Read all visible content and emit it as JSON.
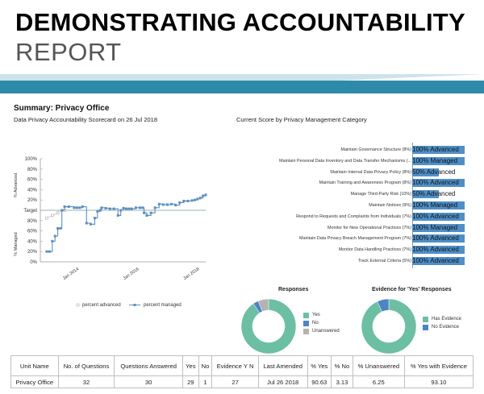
{
  "report": {
    "title_line1": "DEMONSTRATING ACCOUNTABILITY",
    "title_line2": "REPORT",
    "summary_heading": "Summary:  Privacy Office",
    "scorecard_subtitle": "Data Privacy Accountability Scorecard on 26 Jul 2018",
    "category_title": "Current Score by Privacy Management Category"
  },
  "colors": {
    "banner_light": "#cde3ec",
    "banner_dark": "#2e8aa9",
    "bar_blue": "#4f8fc8",
    "donut_green": "#6cbfa3",
    "donut_blue": "#4d84c4",
    "donut_gray": "#b3b3b3",
    "line_managed": "#5b8fc2",
    "line_target": "#7a9a9a"
  },
  "chart_data": [
    {
      "type": "line",
      "y_tick_labels_advanced": [
        "100%",
        "80%",
        "60%",
        "40%",
        "20%"
      ],
      "target_label": "Target",
      "y_tick_labels_managed": [
        "80%",
        "60%",
        "40%",
        "20%",
        "0%"
      ],
      "ylabel_advanced": "% Advanced",
      "ylabel_managed": "% Managed",
      "x_tick_labels": [
        "Jan 2014",
        "Jan 2016",
        "Jan 2018"
      ],
      "ylim": [
        -100,
        100
      ],
      "series": [
        {
          "name": "percent advanced",
          "x": [
            0.0,
            0.4,
            0.8,
            1.3
          ],
          "values": [
            -15,
            -10,
            -5,
            0
          ]
        },
        {
          "name": "percent managed",
          "x": [
            0.0,
            0.2,
            0.4,
            0.6,
            0.8,
            1.0,
            1.1,
            1.3,
            1.6,
            2.0,
            2.2,
            2.4,
            2.6,
            2.9,
            3.2,
            3.5,
            3.7,
            3.9,
            4.0,
            4.3,
            4.6,
            4.9,
            5.2,
            5.4,
            5.6,
            5.8,
            6.0,
            6.2,
            6.5,
            6.8,
            7.0,
            7.1,
            7.3,
            7.6,
            7.9,
            8.2,
            8.5,
            8.8,
            9.1,
            9.4,
            9.7,
            10.0,
            10.3,
            10.6,
            10.8,
            11.0,
            11.2,
            11.4,
            11.6
          ],
          "values": [
            -80,
            -80,
            -60,
            -50,
            -35,
            -35,
            0,
            7,
            7,
            5,
            5,
            5,
            7,
            -25,
            -27,
            -15,
            -2,
            0,
            5,
            4,
            3,
            3,
            -10,
            0,
            4,
            3,
            3,
            3,
            5,
            5,
            5,
            -5,
            -10,
            -5,
            5,
            12,
            11,
            11,
            12,
            10,
            15,
            18,
            18,
            19,
            20,
            22,
            24,
            28,
            30
          ]
        }
      ],
      "legend": [
        "percent advanced",
        "percent managed"
      ]
    },
    {
      "type": "bar",
      "title": "Current Score by Privacy Management Category",
      "categories": [
        "Maintain Governance Structure (8%)",
        "Maintain Personal Data Inventory and Data Transfer Mechanisms (...",
        "Maintain Internal Data Privacy Policy (8%)",
        "Maintain Training and Awareness Program (8%)",
        "Manage Third-Party Risk (10%)",
        "Maintain Notices (9%)",
        "Respond to Requests and Complaints from Individuals (7%)",
        "Monitor for New Operational Practices (7%)",
        "Maintain Data Privacy Breach Management Program (7%)",
        "Monitor Data Handling Practices (7%)",
        "Track External Criteria (5%)"
      ],
      "values": [
        100,
        100,
        50,
        100,
        50,
        100,
        100,
        100,
        100,
        100,
        100
      ],
      "value_labels": [
        "100% Advanced",
        "100% Managed",
        "50% Advanced",
        "100% Advanced",
        "50% Advanced",
        "100% Managed",
        "100% Advanced",
        "100% Managed",
        "100% Advanced",
        "100% Advanced",
        "100% Advanced"
      ],
      "ylim": [
        0,
        100
      ]
    },
    {
      "type": "pie",
      "title": "Responses",
      "labels": [
        "Yes",
        "No",
        "Unanswered"
      ],
      "values": [
        90.63,
        3.13,
        6.25
      ]
    },
    {
      "type": "pie",
      "title": "Evidence for 'Yes' Responses",
      "labels": [
        "Has Evidence",
        "No Evidence"
      ],
      "values": [
        93.1,
        6.9
      ]
    }
  ],
  "table": {
    "headers": [
      "Unit Name",
      "No. of Questions",
      "Questions Answered",
      "Yes",
      "No",
      "Evidence Y N",
      "Last Amended",
      "% Yes",
      "% No",
      "% Unanswered",
      "% Yes with Evidence"
    ],
    "rows": [
      [
        "Privacy Office",
        "32",
        "30",
        "29",
        "1",
        "27",
        "Jul 26 2018",
        "90.63",
        "3.13",
        "6.25",
        "93.10"
      ]
    ]
  }
}
